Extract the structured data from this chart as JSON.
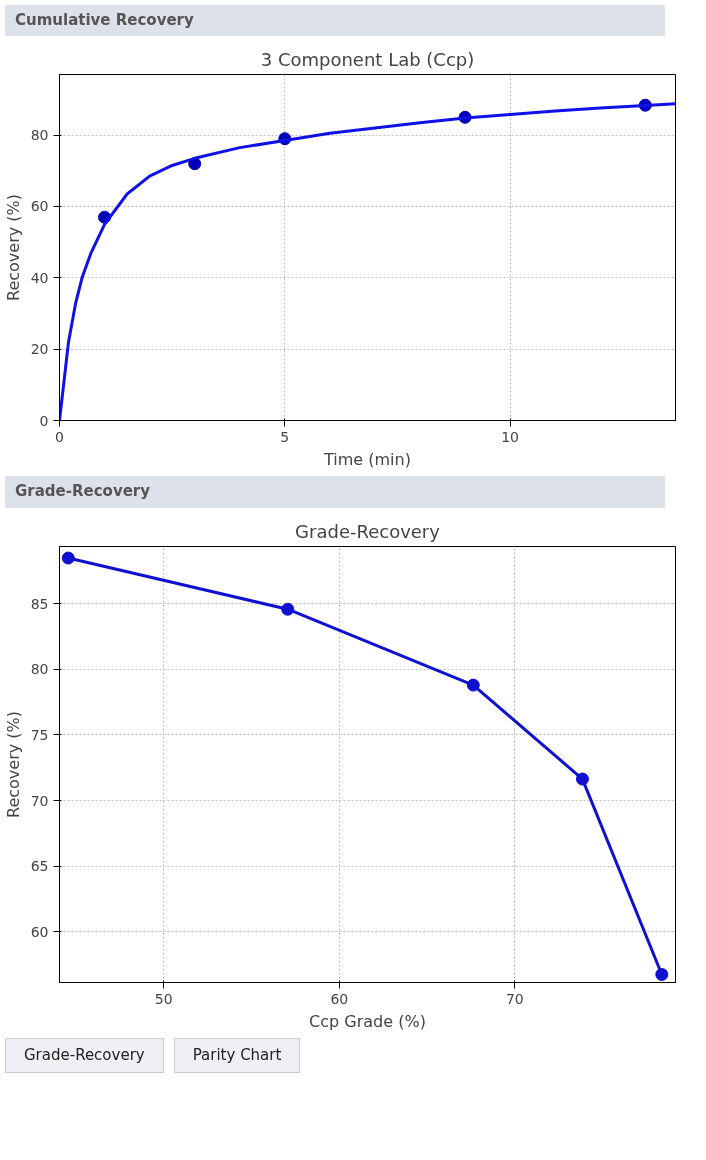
{
  "chart_data": [
    {
      "type": "scatter",
      "title": "3 Component Lab (Ccp)",
      "xlabel": "Time (min)",
      "ylabel": "Recovery (%)",
      "annotations": [
        "Cumulative Recovery"
      ],
      "xlim": [
        0,
        13.67
      ],
      "ylim": [
        0,
        97
      ],
      "xticks": [
        0,
        5,
        10
      ],
      "yticks": [
        0,
        20,
        40,
        60,
        80
      ],
      "grid": true,
      "marker": "circle",
      "series": [
        {
          "type": "scatter",
          "color": "#0000b8",
          "x": [
            1,
            3,
            5,
            9,
            13
          ],
          "values": [
            57,
            72,
            79,
            85,
            88.4
          ]
        },
        {
          "type": "line",
          "marker": "none",
          "color": "#1010e8",
          "x": [
            0,
            0.2,
            0.36,
            0.5,
            0.7,
            1,
            1.5,
            2,
            2.5,
            3,
            4,
            5,
            6,
            7,
            8,
            9,
            10,
            11,
            12,
            13,
            13.67
          ],
          "values": [
            0,
            22,
            33,
            40,
            47,
            55,
            63.5,
            68.5,
            71.5,
            73.5,
            76.5,
            78.5,
            80.5,
            82,
            83.5,
            84.8,
            85.8,
            86.8,
            87.6,
            88.3,
            88.8
          ]
        }
      ]
    },
    {
      "type": "line",
      "title": "Grade-Recovery",
      "xlabel": "Ccp Grade (%)",
      "ylabel": "Recovery (%)",
      "annotations": [
        "Grade-Recovery",
        "Grade-Recovery",
        "Parity Chart"
      ],
      "xlim": [
        44.06,
        79.15
      ],
      "ylim": [
        56.14,
        89.36
      ],
      "xticks": [
        50,
        60,
        70
      ],
      "yticks": [
        60,
        65,
        70,
        75,
        80,
        85
      ],
      "grid": true,
      "marker": "circle",
      "series": [
        {
          "color": "#1010d0",
          "x": [
            44.56,
            57.06,
            67.63,
            73.85,
            78.37
          ],
          "values": [
            88.48,
            84.58,
            78.8,
            71.64,
            56.75
          ]
        }
      ]
    }
  ]
}
